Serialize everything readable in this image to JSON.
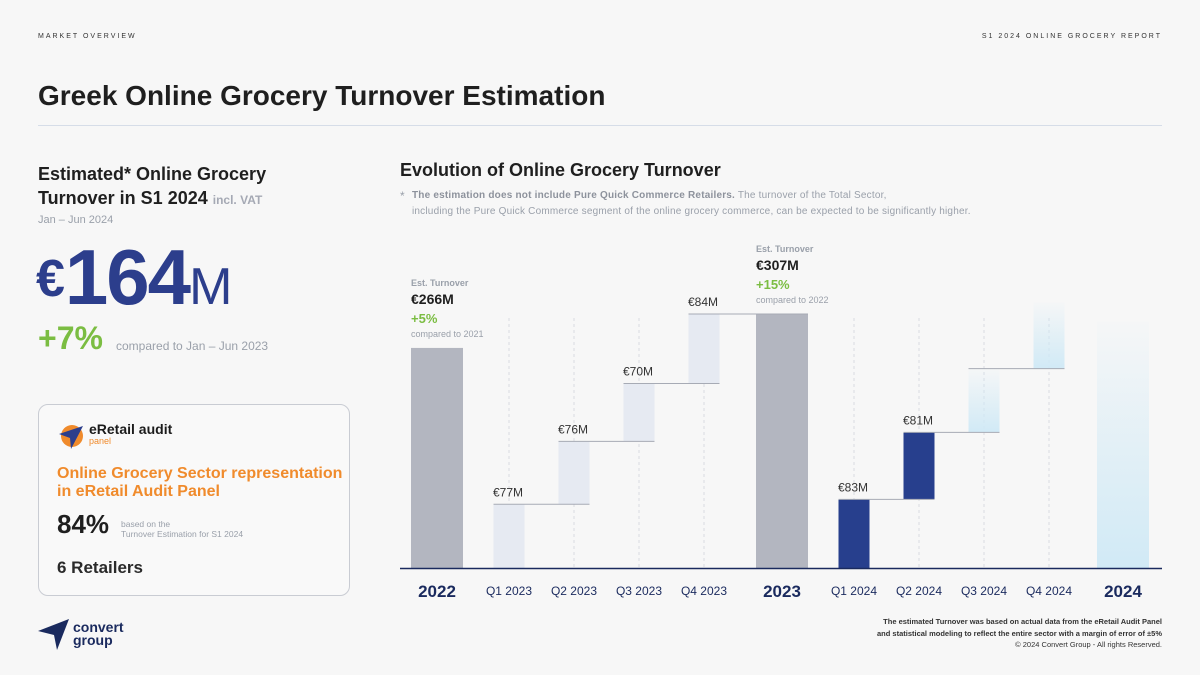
{
  "header": {
    "section": "MARKET OVERVIEW",
    "report": "S1 2024 ONLINE GROCERY REPORT"
  },
  "page_title": "Greek Online Grocery Turnover Estimation",
  "kpi": {
    "heading_line1": "Estimated* Online Grocery",
    "heading_line2": "Turnover in S1 2024",
    "heading_suffix": "incl. VAT",
    "period": "Jan – Jun 2024",
    "currency": "€",
    "value": "164",
    "unit": "M",
    "change": "+7%",
    "compare": "compared to Jan – Jun 2023"
  },
  "panel": {
    "logo_name": "eRetail audit",
    "logo_sub": "panel",
    "heading": "Online Grocery Sector representation in eRetail Audit Panel",
    "pct": "84%",
    "note_line1": "based on the",
    "note_line2": "Turnover Estimation for S1 2024",
    "retailers": "6 Retailers"
  },
  "chart": {
    "title": "Evolution of Online Grocery Turnover",
    "note_star": "*",
    "note_bold": "The estimation does not include Pure Quick Commerce Retailers.",
    "note_rest1": " The turnover of the Total Sector,",
    "note_line2": "including the Pure Quick Commerce segment of the online grocery commerce, can be expected to be significantly higher.",
    "est_label": "Est. Turnover"
  },
  "chart_data": {
    "type": "bar",
    "subtype": "waterfall",
    "categories": [
      "2022",
      "Q1 2023",
      "Q2 2023",
      "Q3 2023",
      "Q4 2023",
      "2023",
      "Q1 2024",
      "Q2 2024",
      "Q3 2024",
      "Q4 2024",
      "2024"
    ],
    "values": [
      266,
      77,
      76,
      70,
      84,
      307,
      83,
      81,
      null,
      null,
      null
    ],
    "value_labels": [
      "",
      "€77M",
      "€76M",
      "€70M",
      "€84M",
      "",
      "€83M",
      "€81M",
      "",
      "",
      ""
    ],
    "kinds": [
      "total",
      "quarter",
      "quarter",
      "quarter",
      "quarter",
      "total",
      "quarter",
      "quarter",
      "forecast",
      "forecast",
      "forecast"
    ],
    "ylim": [
      0,
      320
    ],
    "totals": [
      {
        "category": "2022",
        "label": "€266M",
        "change": "+5%",
        "compare": "compared to 2021"
      },
      {
        "category": "2023",
        "label": "€307M",
        "change": "+15%",
        "compare": "compared to 2022"
      }
    ],
    "colors": {
      "total": "#b3b6c0",
      "quarter_2023": "#e6eaf2",
      "quarter_2024": "#273f8d",
      "forecast": "#d9eef8",
      "growth": "#7bbd42",
      "axis": "#1a2a5e"
    }
  },
  "footer": {
    "logo_line1": "convert",
    "logo_line2": "group",
    "note_line1": "The estimated Turnover was based on actual data from the eRetail Audit Panel",
    "note_line2": "and statistical modeling to reflect the entire sector with a margin of error of ±5%",
    "copyright": "© 2024 Convert Group - All rights Reserved."
  }
}
